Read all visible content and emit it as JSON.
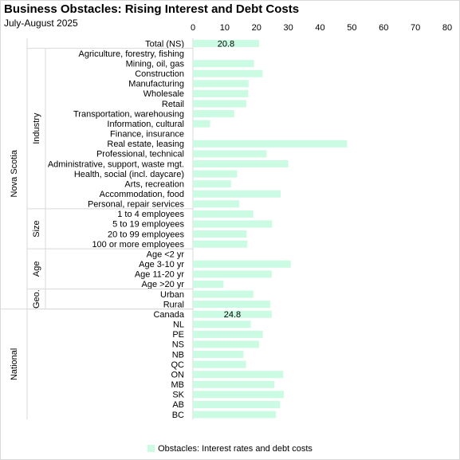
{
  "title": "Business Obstacles: Rising Interest and Debt Costs",
  "subtitle": "July-August 2025",
  "colors": {
    "bar": "#CCFBE4",
    "group_line": "#d9d9d9",
    "grid": "#ffffff"
  },
  "chart_data": {
    "type": "bar",
    "orientation": "horizontal",
    "xlim": [
      0,
      80
    ],
    "xticks": [
      "0",
      "10",
      "20",
      "30",
      "40",
      "50",
      "60",
      "70",
      "80"
    ],
    "xaxis_position": "top",
    "grid": false,
    "legend_position": "bottom",
    "series": [
      {
        "name": "Obstacles: Interest rates and debt costs"
      }
    ],
    "outer_groups": [
      {
        "label": "Nova Scotia",
        "rows": 27
      },
      {
        "label": "National",
        "rows": 11
      }
    ],
    "inner_groups": [
      {
        "label": "",
        "rows": 1
      },
      {
        "label": "Industry",
        "rows": 16
      },
      {
        "label": "Size",
        "rows": 4
      },
      {
        "label": "Age",
        "rows": 4
      },
      {
        "label": "Geo.",
        "rows": 2
      },
      {
        "label": "",
        "rows": 11
      }
    ],
    "categories": [
      "Total (NS)",
      "Agriculture, forestry, fishing",
      "Mining, oil, gas",
      "Construction",
      "Manufacturing",
      "Wholesale",
      "Retail",
      "Transportation, warehousing",
      "Information, cultural",
      "Finance, insurance",
      "Real estate, leasing",
      "Professional, technical",
      "Administrative, support, waste mgt.",
      "Health, social (incl. daycare)",
      "Arts, recreation",
      "Accommodation, food",
      "Personal, repair services",
      "1 to 4 employees",
      "5 to 19 employees",
      "20 to 99 employees",
      "100 or more employees",
      "Age <2 yr",
      "Age 3-10 yr",
      "Age 11-20 yr",
      "Age >20 yr",
      "Urban",
      "Rural",
      "Canada",
      "NL",
      "PE",
      "NS",
      "NB",
      "QC",
      "ON",
      "MB",
      "SK",
      "AB",
      "BC"
    ],
    "values": [
      20.8,
      0,
      19.2,
      21.9,
      17.5,
      17.4,
      16.8,
      13.0,
      5.4,
      0,
      48.5,
      23.2,
      30.0,
      13.9,
      12.0,
      27.6,
      14.6,
      19.0,
      24.9,
      16.9,
      17.1,
      0,
      30.8,
      24.8,
      9.6,
      19.0,
      24.3,
      24.8,
      18.2,
      22.0,
      20.8,
      15.9,
      16.7,
      28.4,
      25.6,
      28.6,
      27.4,
      26.1
    ],
    "data_labels": {
      "0": "20.8",
      "27": "24.8"
    }
  }
}
